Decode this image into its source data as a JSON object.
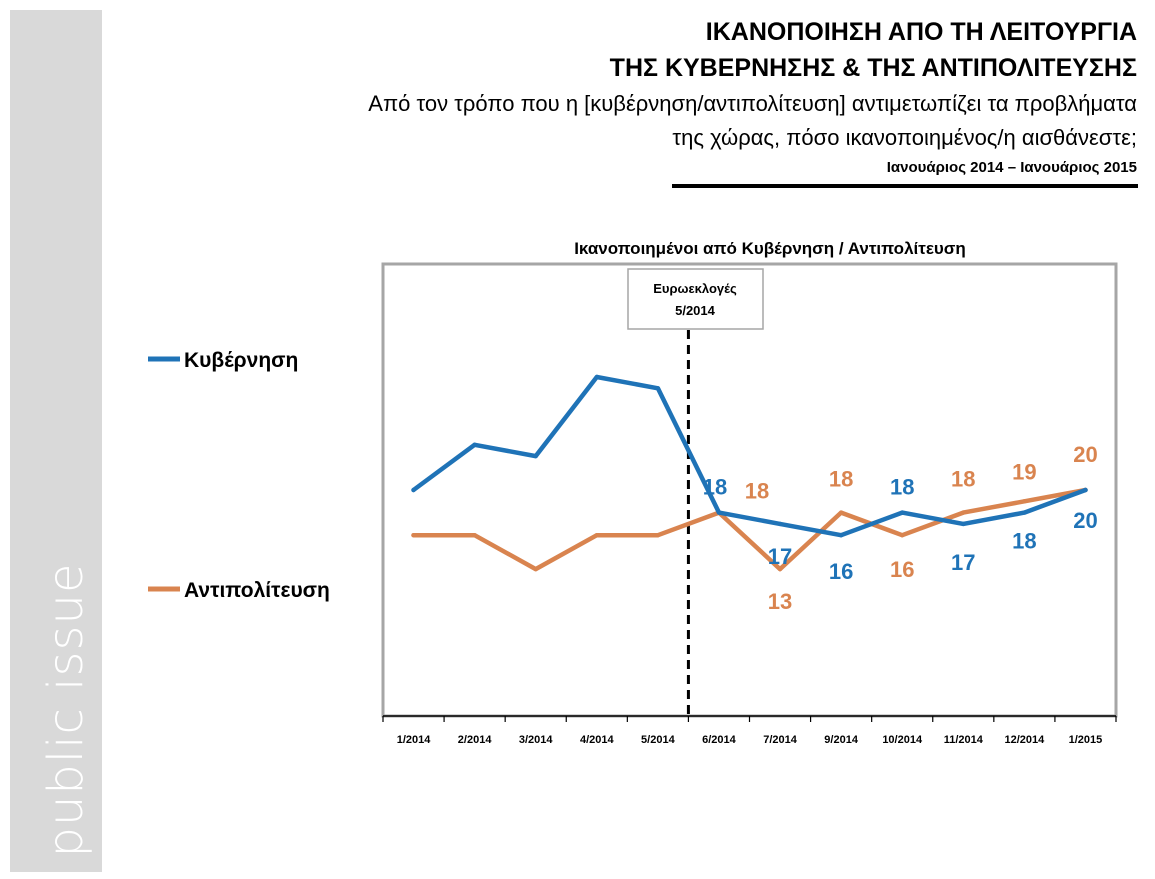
{
  "header": {
    "title_line1": "ΙΚΑΝΟΠΟΙΗΣΗ ΑΠΟ ΤΗ ΛΕΙΤΟΥΡΓΙΑ",
    "title_line2": "ΤΗΣ ΚΥΒΕΡΝΗΣΗΣ & ΤΗΣ ΑΝΤΙΠΟΛΙΤΕΥΣΗΣ",
    "question_line1": "Από τον τρόπο που η [κυβέρνηση/αντιπολίτευση] αντιμετωπίζει τα προβλήματα",
    "question_line2": "της χώρας, πόσο ικανοποιημένος/η αισθάνεστε;",
    "period": "Ιανουάριος 2014 – Ιανουάριος 2015"
  },
  "brand": {
    "text": "public issue"
  },
  "colors": {
    "government": "#1f73b7",
    "opposition": "#d9844f",
    "sidebar": "#d9d9d9"
  },
  "chart_data": {
    "type": "line",
    "title": "Ικανοποιημένοι από Κυβέρνηση / Αντιπολίτευση",
    "categories": [
      "1/2014",
      "2/2014",
      "3/2014",
      "4/2014",
      "5/2014",
      "6/2014",
      "7/2014",
      "9/2014",
      "10/2014",
      "11/2014",
      "12/2014",
      "1/2015"
    ],
    "ylim": [
      0,
      40
    ],
    "grid": false,
    "legend_position": "left",
    "series": [
      {
        "name": "Κυβέρνηση",
        "values": [
          20,
          24,
          23,
          30,
          29,
          18,
          17,
          16,
          18,
          17,
          18,
          20
        ],
        "labels": [
          "",
          "",
          "",
          "",
          "",
          "18",
          "17",
          "16",
          "18",
          "17",
          "18",
          "20"
        ]
      },
      {
        "name": "Αντιπολίτευση",
        "values": [
          16,
          16,
          13,
          16,
          16,
          18,
          13,
          18,
          16,
          18,
          19,
          20
        ],
        "labels": [
          "",
          "",
          "",
          "",
          "",
          "18",
          "13",
          "18",
          "16",
          "18",
          "19",
          "20"
        ]
      }
    ],
    "annotation": {
      "line1": "Ευρωεκλογές",
      "line2": "5/2014",
      "between_categories": [
        4,
        5
      ]
    }
  }
}
